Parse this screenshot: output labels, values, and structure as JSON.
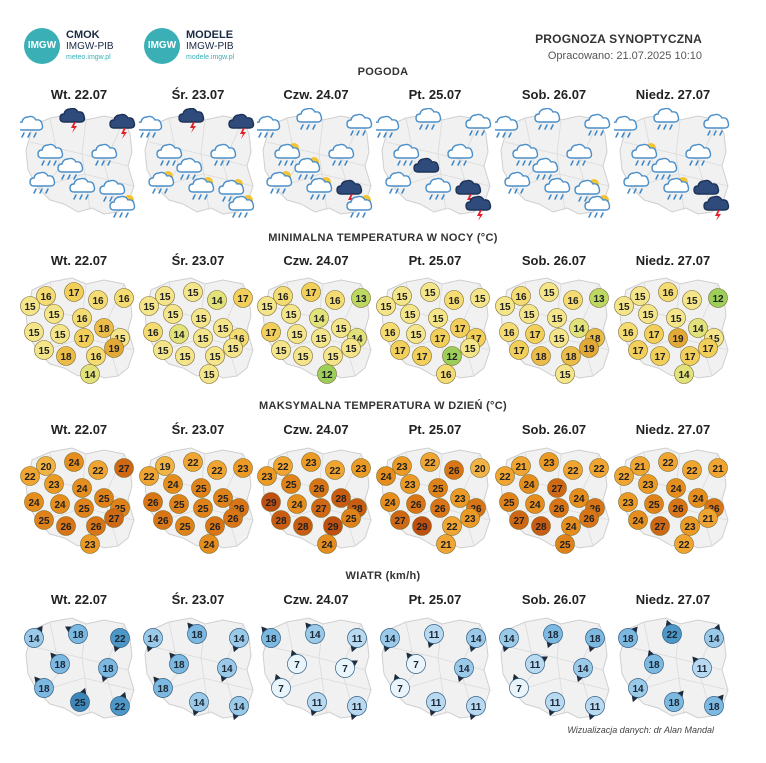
{
  "header": {
    "logo1": {
      "badge": "IMGW",
      "title": "CMOK",
      "subtitle": "IMGW-PIB",
      "url": "meteo.imgw.pl"
    },
    "logo2": {
      "badge": "IMGW",
      "title": "MODELE",
      "subtitle": "IMGW-PIB",
      "url": "modele.imgw.pl"
    },
    "title": "PROGNOZA SYNOPTYCZNA",
    "date": "Opracowano: 21.07.2025 10:10"
  },
  "days": [
    "Wt. 22.07",
    "Śr. 23.07",
    "Czw. 24.07",
    "Pt. 25.07",
    "Sob. 26.07",
    "Niedz. 27.07"
  ],
  "sections": {
    "weather": "POGODA",
    "min_temp": "MINIMALNA TEMPERATURA W NOCY (°C)",
    "max_temp": "MAKSYMALNA TEMPERATURA W DZIEŃ (°C)",
    "wind": "WIATR (km/h)"
  },
  "weather": [
    [
      "rain",
      "thunder",
      "thunder",
      "showers",
      "showers",
      "showers",
      "rain",
      "rain",
      "rain",
      "sunny-showers"
    ],
    [
      "rain",
      "thunder",
      "thunder",
      "showers",
      "rain",
      "rain",
      "sunny-showers",
      "sunny-showers",
      "sunny-showers",
      "sunny-showers"
    ],
    [
      "rain",
      "showers",
      "rain",
      "sunny-showers",
      "rain",
      "sunny-showers",
      "sunny-showers",
      "sunny-showers",
      "thunder",
      "sunny-showers"
    ],
    [
      "rain",
      "showers",
      "showers",
      "showers",
      "rain",
      "dark-cloud",
      "rain",
      "rain",
      "thunder",
      "thunder"
    ],
    [
      "rain",
      "showers",
      "showers",
      "showers",
      "rain",
      "rain",
      "rain",
      "rain",
      "sunny-showers",
      "sunny-showers"
    ],
    [
      "rain",
      "showers",
      "showers",
      "sunny-showers",
      "rain",
      "rain",
      "rain",
      "sunny-showers",
      "dark-cloud",
      "thunder"
    ]
  ],
  "min_temp": [
    [
      16,
      17,
      16,
      16,
      15,
      15,
      16,
      18,
      15,
      15,
      17,
      15,
      15,
      18,
      16,
      19,
      14
    ],
    [
      15,
      15,
      14,
      17,
      15,
      15,
      15,
      15,
      16,
      14,
      15,
      16,
      15,
      15,
      15,
      15,
      15
    ],
    [
      16,
      17,
      16,
      13,
      15,
      15,
      14,
      15,
      17,
      15,
      15,
      14,
      15,
      15,
      15,
      15,
      12
    ],
    [
      15,
      15,
      16,
      15,
      15,
      15,
      15,
      17,
      16,
      15,
      17,
      17,
      17,
      17,
      12,
      15,
      16
    ],
    [
      16,
      15,
      16,
      13,
      15,
      15,
      15,
      14,
      16,
      17,
      15,
      18,
      17,
      18,
      18,
      19,
      15
    ],
    [
      15,
      16,
      15,
      12,
      15,
      15,
      15,
      14,
      16,
      17,
      19,
      15,
      17,
      17,
      17,
      17,
      14
    ]
  ],
  "max_temp": [
    [
      20,
      24,
      22,
      27,
      22,
      23,
      24,
      25,
      24,
      24,
      25,
      25,
      25,
      26,
      26,
      27,
      23
    ],
    [
      19,
      22,
      22,
      23,
      22,
      24,
      25,
      25,
      26,
      25,
      25,
      26,
      26,
      25,
      26,
      26,
      24
    ],
    [
      22,
      23,
      22,
      23,
      23,
      25,
      26,
      28,
      29,
      24,
      27,
      28,
      28,
      28,
      29,
      25,
      24
    ],
    [
      23,
      22,
      26,
      20,
      24,
      23,
      25,
      23,
      24,
      26,
      26,
      26,
      27,
      29,
      22,
      23,
      21
    ],
    [
      21,
      23,
      22,
      22,
      22,
      24,
      27,
      24,
      25,
      24,
      26,
      26,
      27,
      28,
      24,
      26,
      25
    ],
    [
      21,
      22,
      22,
      21,
      22,
      23,
      24,
      24,
      23,
      25,
      26,
      26,
      24,
      27,
      23,
      21,
      22
    ]
  ],
  "wind": [
    [
      14,
      18,
      22,
      18,
      18,
      18,
      25,
      22
    ],
    [
      14,
      18,
      14,
      18,
      14,
      18,
      14,
      14
    ],
    [
      18,
      14,
      11,
      7,
      7,
      7,
      11,
      11
    ],
    [
      14,
      11,
      14,
      7,
      14,
      7,
      11,
      11
    ],
    [
      14,
      18,
      18,
      11,
      14,
      7,
      11,
      11
    ],
    [
      18,
      22,
      14,
      18,
      11,
      14,
      18,
      18
    ]
  ],
  "credit": "Wizualizacja danych: dr Alan Mandal"
}
